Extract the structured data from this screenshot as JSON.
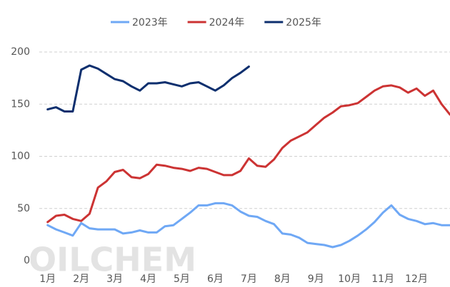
{
  "chart_data": {
    "type": "line",
    "watermark": "OILCHEM",
    "x": [
      1,
      1.25,
      1.5,
      1.75,
      2,
      2.25,
      2.5,
      2.75,
      3,
      3.25,
      3.5,
      3.75,
      4,
      4.25,
      4.5,
      4.75,
      5,
      5.25,
      5.5,
      5.75,
      6,
      6.25,
      6.5,
      6.75,
      7,
      7.25,
      7.5,
      7.75,
      8,
      8.25,
      8.5,
      8.75,
      9,
      9.25,
      9.5,
      9.75,
      10,
      10.25,
      10.5,
      10.75,
      11,
      11.25,
      11.5,
      11.75,
      12,
      12.25,
      12.5,
      12.75,
      13
    ],
    "xlim": [
      0.75,
      13
    ],
    "xticks": [
      {
        "value": 1,
        "label": "1月"
      },
      {
        "value": 2,
        "label": "2月"
      },
      {
        "value": 3,
        "label": "3月"
      },
      {
        "value": 4,
        "label": "4月"
      },
      {
        "value": 5,
        "label": "5月"
      },
      {
        "value": 6,
        "label": "6月"
      },
      {
        "value": 7,
        "label": "7月"
      },
      {
        "value": 8,
        "label": "8月"
      },
      {
        "value": 9,
        "label": "9月"
      },
      {
        "value": 10,
        "label": "10月"
      },
      {
        "value": 11,
        "label": "11月"
      },
      {
        "value": 12,
        "label": "12月"
      }
    ],
    "ylim": [
      0,
      200
    ],
    "yticks": [
      0,
      50,
      100,
      150,
      200
    ],
    "grid": true,
    "legend": "top",
    "series": [
      {
        "name": "2023年",
        "color": "#6fa8f5",
        "values": [
          34,
          30,
          27,
          24,
          36,
          31,
          30,
          30,
          30,
          26,
          27,
          29,
          27,
          27,
          33,
          34,
          40,
          46,
          53,
          53,
          55,
          55,
          53,
          47,
          43,
          42,
          38,
          35,
          26,
          25,
          22,
          17,
          16,
          15,
          13,
          15,
          19,
          24,
          30,
          37,
          46,
          53,
          44,
          40,
          38,
          35,
          36,
          34,
          34
        ]
      },
      {
        "name": "2024年",
        "color": "#cc3333",
        "values": [
          37,
          43,
          44,
          40,
          38,
          45,
          70,
          76,
          85,
          87,
          80,
          79,
          83,
          92,
          91,
          89,
          88,
          86,
          89,
          88,
          85,
          82,
          82,
          86,
          98,
          91,
          90,
          97,
          108,
          115,
          119,
          123,
          130,
          137,
          142,
          148,
          149,
          151,
          157,
          163,
          167,
          168,
          166,
          161,
          165,
          158,
          163,
          150,
          140
        ]
      },
      {
        "name": "2025年",
        "color": "#0d2f6e",
        "values": [
          145,
          147,
          143,
          143,
          183,
          187,
          184,
          179,
          174,
          172,
          167,
          163,
          170,
          170,
          171,
          169,
          167,
          170,
          171,
          167,
          163,
          168,
          175,
          180,
          186,
          null,
          null,
          null,
          null,
          null,
          null,
          null,
          null,
          null,
          null,
          null,
          null,
          null,
          null,
          null,
          null,
          null,
          null,
          null,
          null,
          null,
          null,
          null,
          null
        ]
      }
    ]
  }
}
